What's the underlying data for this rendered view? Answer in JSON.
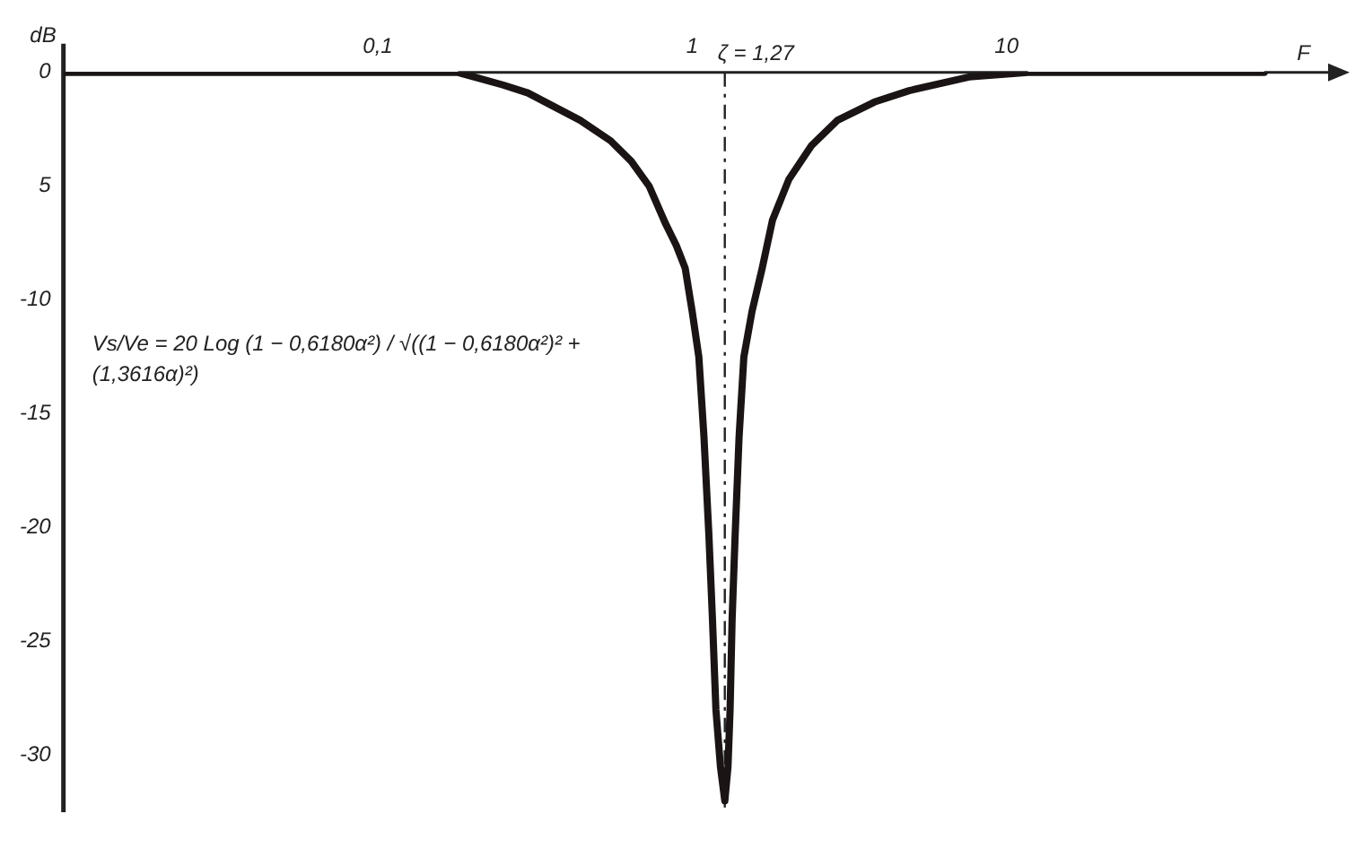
{
  "chart_data": {
    "type": "line",
    "xlabel": "F",
    "ylabel": "dB",
    "log": "x",
    "grid": false,
    "legend": false,
    "marker": "none",
    "line_style": "solid",
    "xlim": [
      0.01,
      100
    ],
    "xticks": [
      {
        "value": 0.1,
        "label": "0,1"
      },
      1,
      10
    ],
    "ylim": [
      -32.5,
      0
    ],
    "yticks": [
      0,
      {
        "value": -5,
        "label": "5"
      },
      -10,
      -15,
      -20,
      -25,
      -30
    ],
    "ref_lines": [
      {
        "axis": "x",
        "value": 1.27,
        "label": "ζ = 1,27",
        "color": "#222222",
        "line_style": "dashed"
      }
    ],
    "annotations": [
      "Vs/Ve = 20 Log (1 − 0,6180α²) / √((1 − 0,6180α²)² + (1,3616α)²)"
    ],
    "series": [
      {
        "color": "#1a1414",
        "x": [
          0.01,
          0.18,
          0.25,
          0.3,
          0.44,
          0.55,
          0.64,
          0.73,
          0.82,
          0.89,
          0.95,
          1.0,
          1.05,
          1.09,
          1.13,
          1.16,
          1.19,
          1.23,
          1.27,
          1.3,
          1.32,
          1.34,
          1.37,
          1.41,
          1.46,
          1.55,
          1.67,
          1.8,
          2.03,
          2.4,
          2.9,
          3.8,
          4.9,
          7.6,
          11.7,
          66
        ],
        "values": [
          0,
          0,
          -0.55,
          -0.9,
          -2.1,
          -3,
          -3.9,
          -5,
          -6.6,
          -7.6,
          -8.6,
          -10.5,
          -12.5,
          -16,
          -20.3,
          -24,
          -28,
          -30.5,
          -32,
          -30.5,
          -28,
          -24,
          -20.3,
          -16,
          -12.5,
          -10.5,
          -8.6,
          -6.5,
          -4.7,
          -3.2,
          -2.1,
          -1.3,
          -0.8,
          -0.2,
          0,
          0
        ]
      }
    ]
  }
}
